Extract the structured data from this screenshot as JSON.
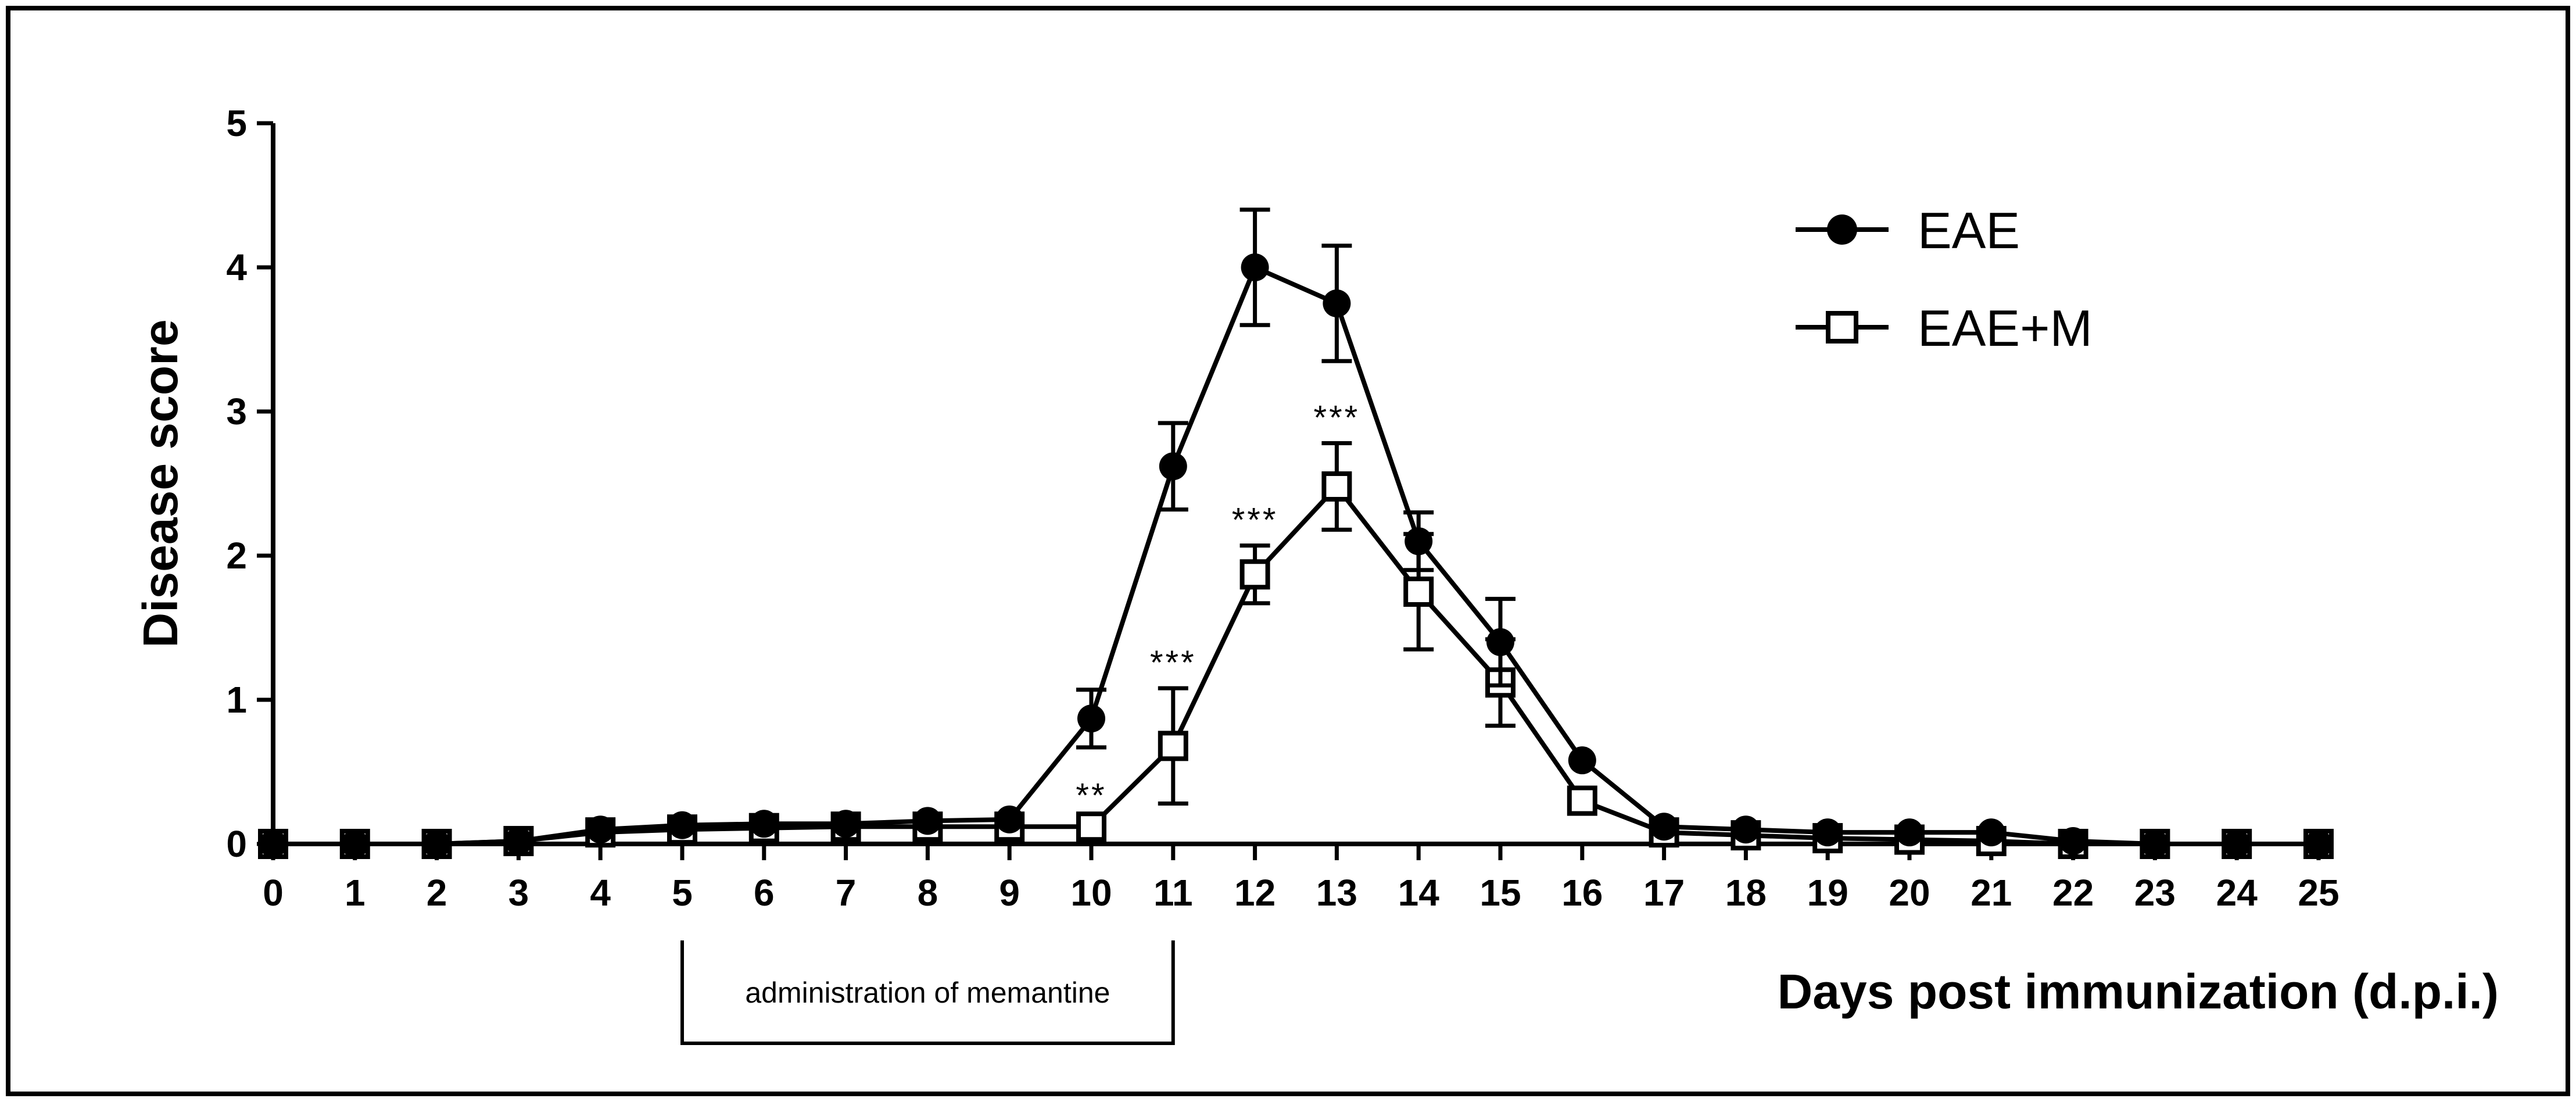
{
  "chart_data": {
    "type": "line",
    "title": "",
    "xlabel": "Days post immunization (d.p.i.)",
    "ylabel": "Disease score",
    "xlim": [
      0,
      25
    ],
    "ylim": [
      0,
      5
    ],
    "x_ticks": [
      0,
      1,
      2,
      3,
      4,
      5,
      6,
      7,
      8,
      9,
      10,
      11,
      12,
      13,
      14,
      15,
      16,
      17,
      18,
      19,
      20,
      21,
      22,
      23,
      24,
      25
    ],
    "y_ticks": [
      0,
      1,
      2,
      3,
      4,
      5
    ],
    "grid": false,
    "legend_position": "top-right",
    "x": [
      0,
      1,
      2,
      3,
      4,
      5,
      6,
      7,
      8,
      9,
      10,
      11,
      12,
      13,
      14,
      15,
      16,
      17,
      18,
      19,
      20,
      21,
      22,
      23,
      24,
      25
    ],
    "series": [
      {
        "name": "EAE",
        "marker": "filled-circle",
        "color": "#000000",
        "values": [
          0,
          0,
          0,
          0.02,
          0.1,
          0.13,
          0.14,
          0.14,
          0.16,
          0.17,
          0.87,
          2.62,
          4.0,
          3.75,
          2.1,
          1.4,
          0.58,
          0.12,
          0.1,
          0.08,
          0.08,
          0.08,
          0.02,
          0,
          0,
          0
        ],
        "error": [
          0,
          0,
          0,
          0.02,
          0.05,
          0.05,
          0.05,
          0.05,
          0.05,
          0.05,
          0.2,
          0.3,
          0.4,
          0.4,
          0.2,
          0.3,
          0.05,
          0.05,
          0.03,
          0.03,
          0.03,
          0.03,
          0.02,
          0,
          0,
          0
        ]
      },
      {
        "name": "EAE+M",
        "marker": "open-square",
        "color": "#000000",
        "values": [
          0,
          0,
          0,
          0.02,
          0.08,
          0.1,
          0.11,
          0.12,
          0.12,
          0.12,
          0.12,
          0.68,
          1.87,
          2.48,
          1.75,
          1.12,
          0.3,
          0.08,
          0.06,
          0.04,
          0.03,
          0.02,
          0,
          0,
          0,
          0
        ],
        "error": [
          0,
          0,
          0,
          0.02,
          0.04,
          0.04,
          0.04,
          0.04,
          0.04,
          0.04,
          0.04,
          0.4,
          0.2,
          0.3,
          0.4,
          0.3,
          0.05,
          0.04,
          0.03,
          0.02,
          0.02,
          0.02,
          0,
          0,
          0,
          0
        ]
      }
    ],
    "significance": [
      {
        "x": 10,
        "label": "**"
      },
      {
        "x": 11,
        "label": "***"
      },
      {
        "x": 12,
        "label": "***"
      },
      {
        "x": 13,
        "label": "***"
      }
    ],
    "annotations": [
      {
        "label": "administration of memantine",
        "x_start": 5,
        "x_end": 11
      }
    ]
  }
}
